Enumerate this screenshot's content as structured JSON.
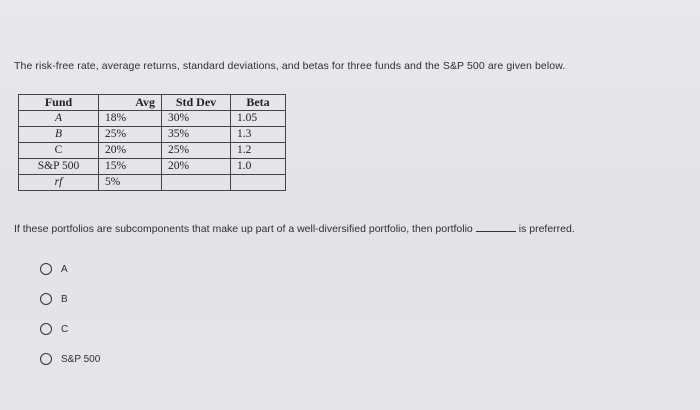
{
  "question": {
    "intro": "The risk-free rate, average returns, standard deviations, and betas for three funds and the S&P 500 are given below.",
    "prompt_before": "If these portfolios are subcomponents that make up part of a well-diversified portfolio, then portfolio",
    "prompt_after": "is preferred."
  },
  "table": {
    "headers": [
      "Fund",
      "Avg",
      "Std Dev",
      "Beta"
    ],
    "rows": [
      {
        "fund": "A",
        "avg": "18%",
        "std": "30%",
        "beta": "1.05"
      },
      {
        "fund": "B",
        "avg": "25%",
        "std": "35%",
        "beta": "1.3"
      },
      {
        "fund": "C",
        "avg": "20%",
        "std": "25%",
        "beta": "1.2"
      },
      {
        "fund": "S&P 500",
        "avg": "15%",
        "std": "20%",
        "beta": "1.0"
      },
      {
        "fund": "rf",
        "avg": "5%",
        "std": "",
        "beta": ""
      }
    ]
  },
  "options": [
    {
      "label": "A"
    },
    {
      "label": "B"
    },
    {
      "label": "C"
    },
    {
      "label": "S&P 500"
    }
  ]
}
